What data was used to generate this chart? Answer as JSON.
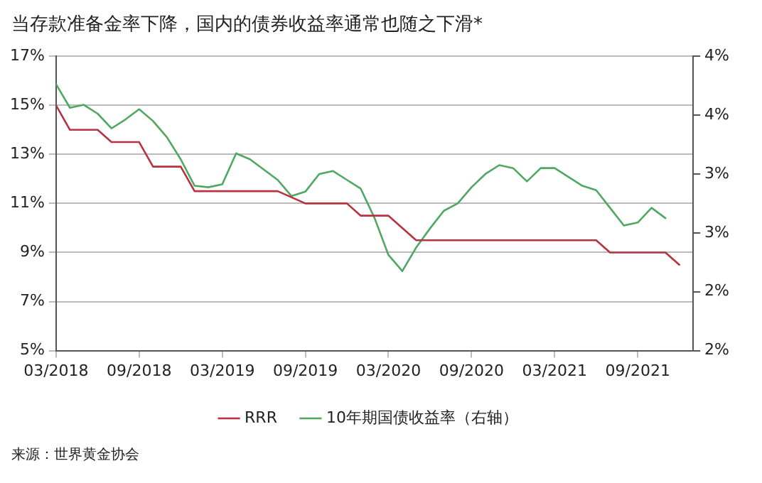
{
  "chart_data": {
    "type": "line",
    "title": "当存款准备金率下降，国内的债券收益率通常也随之下滑*",
    "annotations": [
      "来源：世界黄金协会"
    ],
    "series": [
      {
        "name": "RRR",
        "color": "#b8323f",
        "x": [
          "2018-03",
          "2018-04",
          "2018-06",
          "2018-07",
          "2018-09",
          "2018-10",
          "2018-12",
          "2019-01",
          "2019-07",
          "2019-09",
          "2019-12",
          "2020-01",
          "2020-03",
          "2020-05",
          "2021-06",
          "2021-07",
          "2021-11",
          "2021-12"
        ],
        "values": [
          15,
          14,
          14,
          13.5,
          13.5,
          12.5,
          12.5,
          11.5,
          11.5,
          11,
          11,
          10.5,
          10.5,
          9.5,
          9.5,
          9,
          9,
          8.5
        ]
      },
      {
        "name": "10年期国债收益率（右轴）",
        "color": "#4fa862",
        "axis": "y2",
        "x": [
          "2018-03",
          "2018-04",
          "2018-05",
          "2018-06",
          "2018-07",
          "2018-08",
          "2018-09",
          "2018-10",
          "2018-11",
          "2018-12",
          "2019-01",
          "2019-02",
          "2019-03",
          "2019-04",
          "2019-05",
          "2019-06",
          "2019-07",
          "2019-08",
          "2019-09",
          "2019-10",
          "2019-11",
          "2019-12",
          "2020-01",
          "2020-02",
          "2020-03",
          "2020-04",
          "2020-05",
          "2020-06",
          "2020-07",
          "2020-08",
          "2020-09",
          "2020-10",
          "2020-11",
          "2020-12",
          "2021-01",
          "2021-02",
          "2021-03",
          "2021-04",
          "2021-05",
          "2021-06",
          "2021-07",
          "2021-08",
          "2021-09",
          "2021-10",
          "2021-11"
        ],
        "values": [
          3.81,
          3.65,
          3.67,
          3.61,
          3.51,
          3.57,
          3.64,
          3.56,
          3.45,
          3.3,
          3.12,
          3.11,
          3.13,
          3.34,
          3.3,
          3.23,
          3.16,
          3.05,
          3.08,
          3.2,
          3.22,
          3.16,
          3.1,
          2.9,
          2.65,
          2.54,
          2.7,
          2.83,
          2.95,
          3.0,
          3.11,
          3.2,
          3.26,
          3.24,
          3.15,
          3.24,
          3.24,
          3.18,
          3.12,
          3.09,
          2.97,
          2.85,
          2.87,
          2.97,
          2.9
        ]
      }
    ],
    "xlim": [
      "2018-03",
      "2022-01"
    ],
    "xticks": [
      {
        "value": "2018-03",
        "label": "03/2018"
      },
      {
        "value": "2018-09",
        "label": "09/2018"
      },
      {
        "value": "2019-03",
        "label": "03/2019"
      },
      {
        "value": "2019-09",
        "label": "09/2019"
      },
      {
        "value": "2020-03",
        "label": "03/2020"
      },
      {
        "value": "2020-09",
        "label": "09/2020"
      },
      {
        "value": "2021-03",
        "label": "03/2021"
      },
      {
        "value": "2021-09",
        "label": "09/2021"
      }
    ],
    "ylim": [
      5,
      17
    ],
    "yticks": [
      {
        "value": 5,
        "label": "5%"
      },
      {
        "value": 7,
        "label": "7%"
      },
      {
        "value": 9,
        "label": "9%"
      },
      {
        "value": 11,
        "label": "11%"
      },
      {
        "value": 13,
        "label": "13%"
      },
      {
        "value": 15,
        "label": "15%"
      },
      {
        "value": 17,
        "label": "17%"
      }
    ],
    "y2lim": [
      2,
      4
    ],
    "y2ticks": [
      {
        "value": 2,
        "label": "2%"
      },
      {
        "value": 2.4,
        "label": "2%"
      },
      {
        "value": 2.8,
        "label": "3%"
      },
      {
        "value": 3.2,
        "label": "3%"
      },
      {
        "value": 3.6,
        "label": "4%"
      },
      {
        "value": 4,
        "label": "4%"
      }
    ],
    "grid": "y",
    "legend": "bottom",
    "marker": "none",
    "line_style": "solid"
  }
}
